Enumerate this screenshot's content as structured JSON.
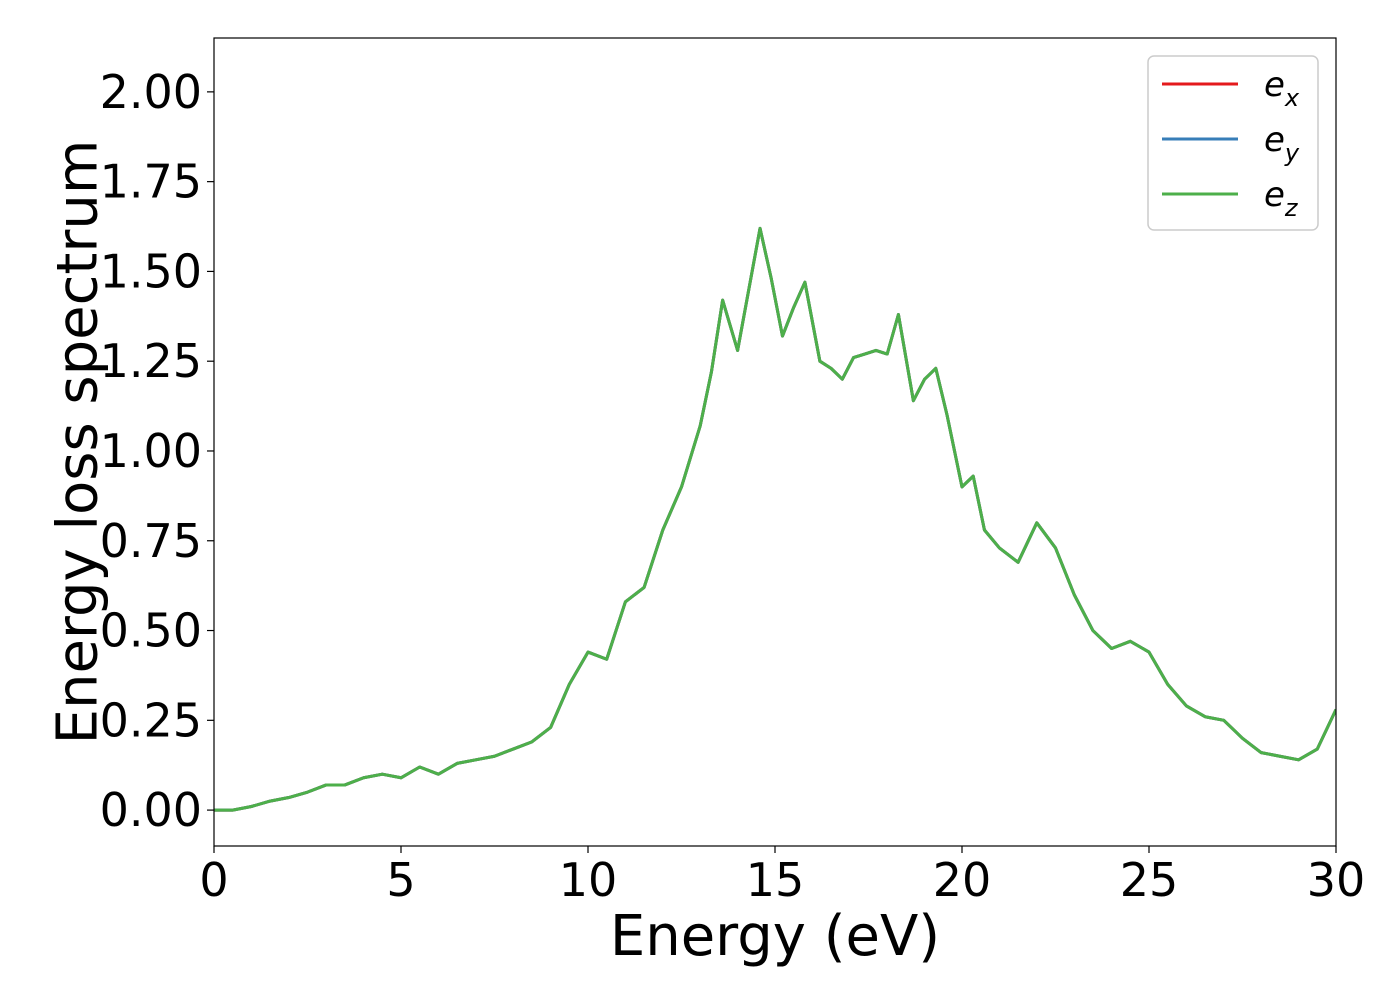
{
  "chart_data": {
    "type": "line",
    "title": "",
    "xlabel": "Energy (eV)",
    "ylabel": "Energy loss spectrum",
    "xlim": [
      0,
      30
    ],
    "ylim": [
      -0.1,
      2.15
    ],
    "xticks": [
      0,
      5,
      10,
      15,
      20,
      25,
      30
    ],
    "xtick_labels": [
      "0",
      "5",
      "10",
      "15",
      "20",
      "25",
      "30"
    ],
    "yticks": [
      0.0,
      0.25,
      0.5,
      0.75,
      1.0,
      1.25,
      1.5,
      1.75,
      2.0
    ],
    "ytick_labels": [
      "0.00",
      "0.25",
      "0.50",
      "0.75",
      "1.00",
      "1.25",
      "1.50",
      "1.75",
      "2.00"
    ],
    "grid": false,
    "legend_position": "top-right",
    "x": [
      0,
      0.5,
      1.0,
      1.5,
      2.0,
      2.5,
      3.0,
      3.5,
      4.0,
      4.5,
      5.0,
      5.5,
      6.0,
      6.5,
      7.0,
      7.5,
      8.0,
      8.5,
      9.0,
      9.5,
      10.0,
      10.5,
      11.0,
      11.5,
      12.0,
      12.5,
      13.0,
      13.3,
      13.6,
      14.0,
      14.3,
      14.6,
      14.9,
      15.2,
      15.5,
      15.8,
      16.2,
      16.5,
      16.8,
      17.1,
      17.4,
      17.7,
      18.0,
      18.3,
      18.7,
      19.0,
      19.3,
      19.6,
      20.0,
      20.3,
      20.6,
      21.0,
      21.5,
      22.0,
      22.5,
      23.0,
      23.5,
      24.0,
      24.5,
      25.0,
      25.5,
      26.0,
      26.5,
      27.0,
      27.5,
      28.0,
      28.5,
      29.0,
      29.5,
      30.0
    ],
    "series": [
      {
        "name_main": "e",
        "name_sub": "x",
        "color": "#e41a1c",
        "values": [
          0.0,
          0.0,
          0.01,
          0.025,
          0.035,
          0.05,
          0.07,
          0.07,
          0.09,
          0.1,
          0.09,
          0.12,
          0.1,
          0.13,
          0.14,
          0.15,
          0.17,
          0.19,
          0.23,
          0.35,
          0.44,
          0.42,
          0.58,
          0.62,
          0.78,
          0.9,
          1.07,
          1.22,
          1.42,
          1.28,
          1.45,
          1.62,
          1.48,
          1.32,
          1.4,
          1.47,
          1.25,
          1.23,
          1.2,
          1.26,
          1.27,
          1.28,
          1.27,
          1.38,
          1.14,
          1.2,
          1.23,
          1.1,
          0.9,
          0.93,
          0.78,
          0.73,
          0.69,
          0.8,
          0.73,
          0.6,
          0.5,
          0.45,
          0.47,
          0.44,
          0.35,
          0.29,
          0.26,
          0.25,
          0.2,
          0.16,
          0.15,
          0.14,
          0.17,
          0.28
        ]
      },
      {
        "name_main": "e",
        "name_sub": "y",
        "color": "#377eb8",
        "values": [
          0.0,
          0.0,
          0.01,
          0.025,
          0.035,
          0.05,
          0.07,
          0.07,
          0.09,
          0.1,
          0.09,
          0.12,
          0.1,
          0.13,
          0.14,
          0.15,
          0.17,
          0.19,
          0.23,
          0.35,
          0.44,
          0.42,
          0.58,
          0.62,
          0.78,
          0.9,
          1.07,
          1.22,
          1.42,
          1.28,
          1.45,
          1.62,
          1.48,
          1.32,
          1.4,
          1.47,
          1.25,
          1.23,
          1.2,
          1.26,
          1.27,
          1.28,
          1.27,
          1.38,
          1.14,
          1.2,
          1.23,
          1.1,
          0.9,
          0.93,
          0.78,
          0.73,
          0.69,
          0.8,
          0.73,
          0.6,
          0.5,
          0.45,
          0.47,
          0.44,
          0.35,
          0.29,
          0.26,
          0.25,
          0.2,
          0.16,
          0.15,
          0.14,
          0.17,
          0.28
        ]
      },
      {
        "name_main": "e",
        "name_sub": "z",
        "color": "#4daf4a",
        "values": [
          0.0,
          0.0,
          0.01,
          0.025,
          0.035,
          0.05,
          0.07,
          0.07,
          0.09,
          0.1,
          0.09,
          0.12,
          0.1,
          0.13,
          0.14,
          0.15,
          0.17,
          0.19,
          0.23,
          0.35,
          0.44,
          0.42,
          0.58,
          0.62,
          0.78,
          0.9,
          1.07,
          1.22,
          1.42,
          1.28,
          1.45,
          1.62,
          1.48,
          1.32,
          1.4,
          1.47,
          1.25,
          1.23,
          1.2,
          1.26,
          1.27,
          1.28,
          1.27,
          1.38,
          1.14,
          1.2,
          1.23,
          1.1,
          0.9,
          0.93,
          0.78,
          0.73,
          0.69,
          0.8,
          0.73,
          0.6,
          0.5,
          0.45,
          0.47,
          0.44,
          0.35,
          0.29,
          0.26,
          0.25,
          0.2,
          0.16,
          0.15,
          0.14,
          0.17,
          0.28
        ]
      }
    ]
  }
}
